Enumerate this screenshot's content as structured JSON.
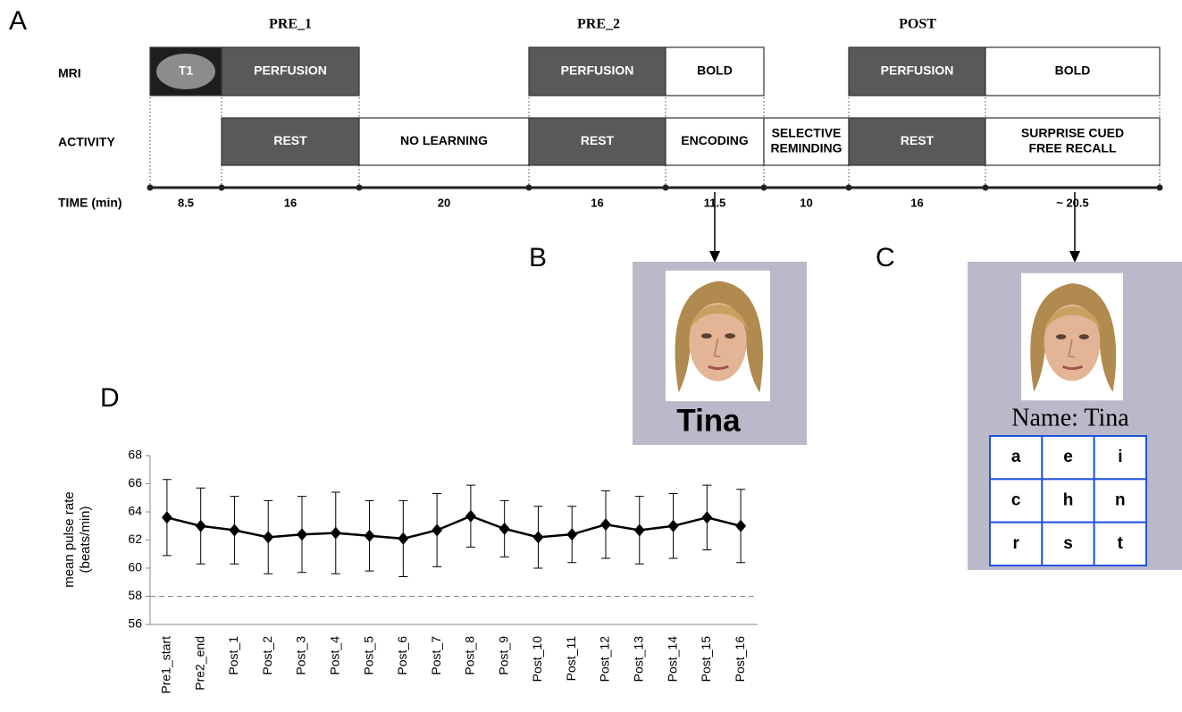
{
  "panel_labels": [
    "A",
    "B",
    "C",
    "D"
  ],
  "timeline": {
    "phases": [
      "PRE_1",
      "PRE_2",
      "POST"
    ],
    "row_labels": [
      "MRI",
      "ACTIVITY",
      "TIME (min)"
    ],
    "mri": [
      "T1",
      "PERFUSION",
      "PERFUSION",
      "BOLD",
      "PERFUSION",
      "BOLD"
    ],
    "activity": [
      [
        "REST"
      ],
      [
        "NO LEARNING"
      ],
      [
        "REST"
      ],
      [
        "ENCODING"
      ],
      [
        "SELECTIVE",
        "REMINDING"
      ],
      [
        "REST"
      ],
      [
        "SURPRISE CUED",
        "FREE RECALL"
      ]
    ],
    "times": [
      8.5,
      16,
      20,
      16,
      11.5,
      10,
      16,
      "~ 20.5"
    ]
  },
  "panel_b": {
    "name": "Tina"
  },
  "panel_c": {
    "prompt": "Name: Tina",
    "letters": [
      [
        "a",
        "e",
        "i"
      ],
      [
        "c",
        "h",
        "n"
      ],
      [
        "r",
        "s",
        "t"
      ]
    ]
  },
  "chart_data": {
    "type": "line",
    "y_label": [
      "mean pulse rate",
      "(beats/min)"
    ],
    "categories": [
      "Pre1_start",
      "Pre2_end",
      "Post_1",
      "Post_2",
      "Post_3",
      "Post_4",
      "Post_5",
      "Post_6",
      "Post_7",
      "Post_8",
      "Post_9",
      "Post_10",
      "Post_11",
      "Post_12",
      "Post_13",
      "Post_14",
      "Post_15",
      "Post_16"
    ],
    "values": [
      63.6,
      63.0,
      62.7,
      62.2,
      62.4,
      62.5,
      62.3,
      62.1,
      62.7,
      63.7,
      62.8,
      62.2,
      62.4,
      63.1,
      62.7,
      63.0,
      63.6,
      63.0
    ],
    "errors": [
      2.7,
      2.7,
      2.4,
      2.6,
      2.7,
      2.9,
      2.5,
      2.7,
      2.6,
      2.2,
      2.0,
      2.2,
      2.0,
      2.4,
      2.4,
      2.3,
      2.3,
      2.6
    ],
    "color": "#000000",
    "ylim": [
      56,
      68
    ],
    "yticks": [
      56,
      58,
      60,
      62,
      64,
      66,
      68
    ],
    "reference_line": 58
  }
}
